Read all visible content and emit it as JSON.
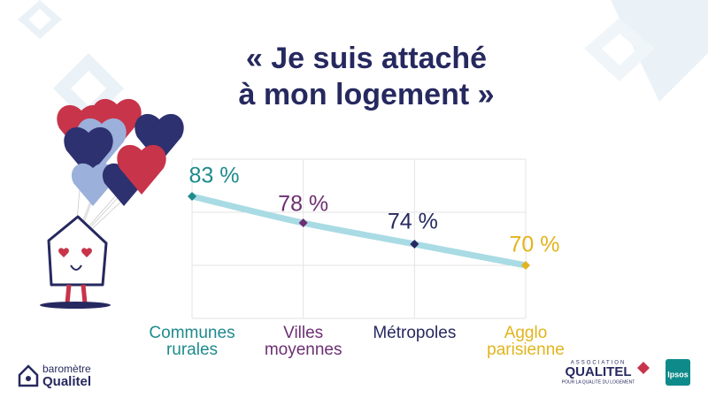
{
  "chart_data": {
    "type": "line",
    "title": "« Je suis attaché\nà mon logement »",
    "categories": [
      "Communes\nrurales",
      "Villes\nmoyennes",
      "Métropoles",
      "Agglo\nparisienne"
    ],
    "values": [
      83,
      78,
      74,
      70
    ],
    "value_labels": [
      "83 %",
      "78 %",
      "74 %",
      "70 %"
    ],
    "point_colors": [
      "#1f8a8c",
      "#6d2f73",
      "#26295f",
      "#e2b41d"
    ],
    "line_color": "#a9dbe4",
    "ylim": [
      60,
      90
    ]
  },
  "logos": {
    "barometre": "baromètre",
    "barometre_brand": "Qualitel",
    "association": "ASSOCIATION",
    "association_brand": "QUALITEL",
    "association_tagline": "POUR LA QUALITÉ DU LOGEMENT",
    "ipsos": "Ipsos"
  }
}
